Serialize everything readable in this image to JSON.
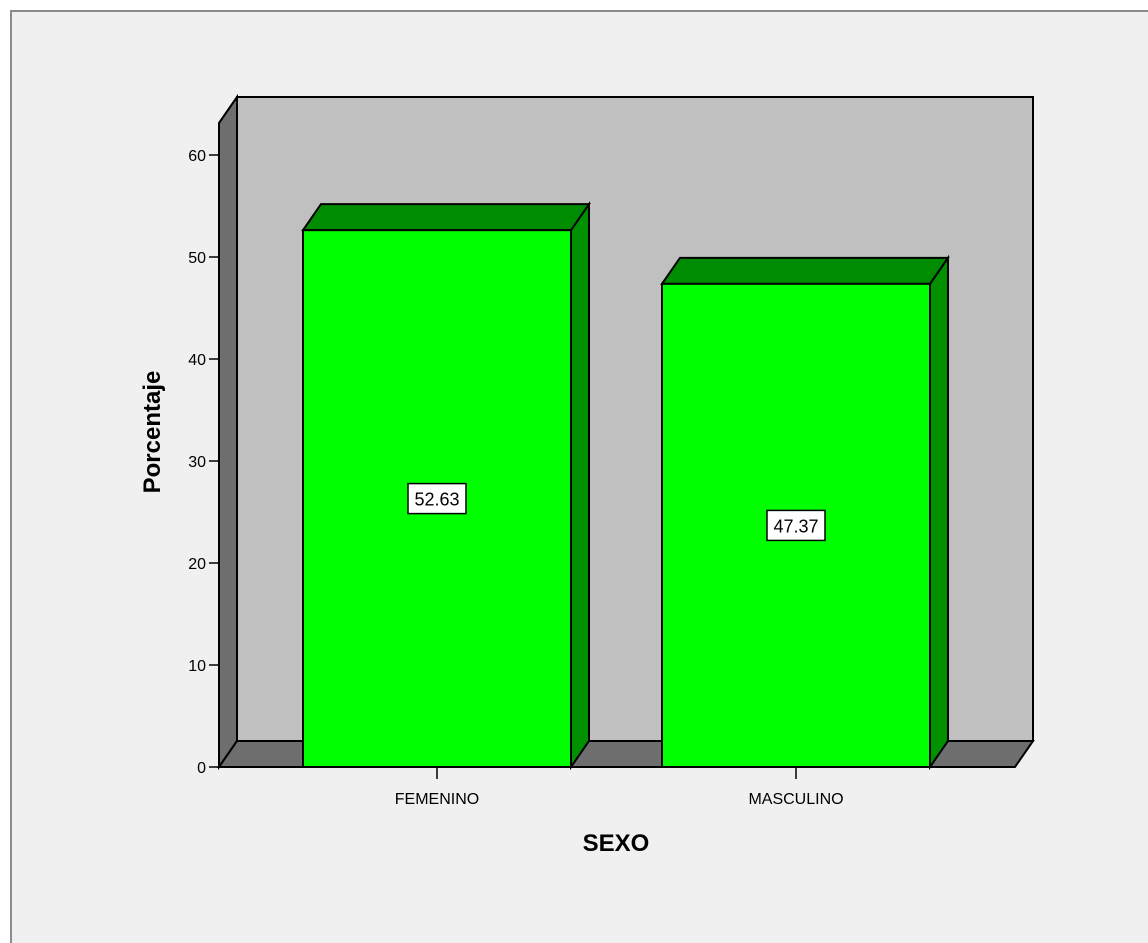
{
  "chart_data": {
    "type": "bar",
    "categories": [
      "FEMENINO",
      "MASCULINO"
    ],
    "values": [
      52.63,
      47.37
    ],
    "data_labels": [
      "52.63",
      "47.37"
    ],
    "title": "",
    "xlabel": "SEXO",
    "ylabel": "Porcentaje",
    "ylim": [
      0,
      60
    ],
    "yticks": [
      "0",
      "10",
      "20",
      "30",
      "40",
      "50",
      "60"
    ],
    "grid": false,
    "style_3d": true,
    "colors": {
      "bar_front": "#00ff00",
      "bar_top": "#008c00",
      "bar_side": "#009000",
      "back_wall": "#c0c0c0",
      "side_wall": "#6e6e6e",
      "floor": "#6e6e6e",
      "background": "#f0f0f0"
    }
  }
}
